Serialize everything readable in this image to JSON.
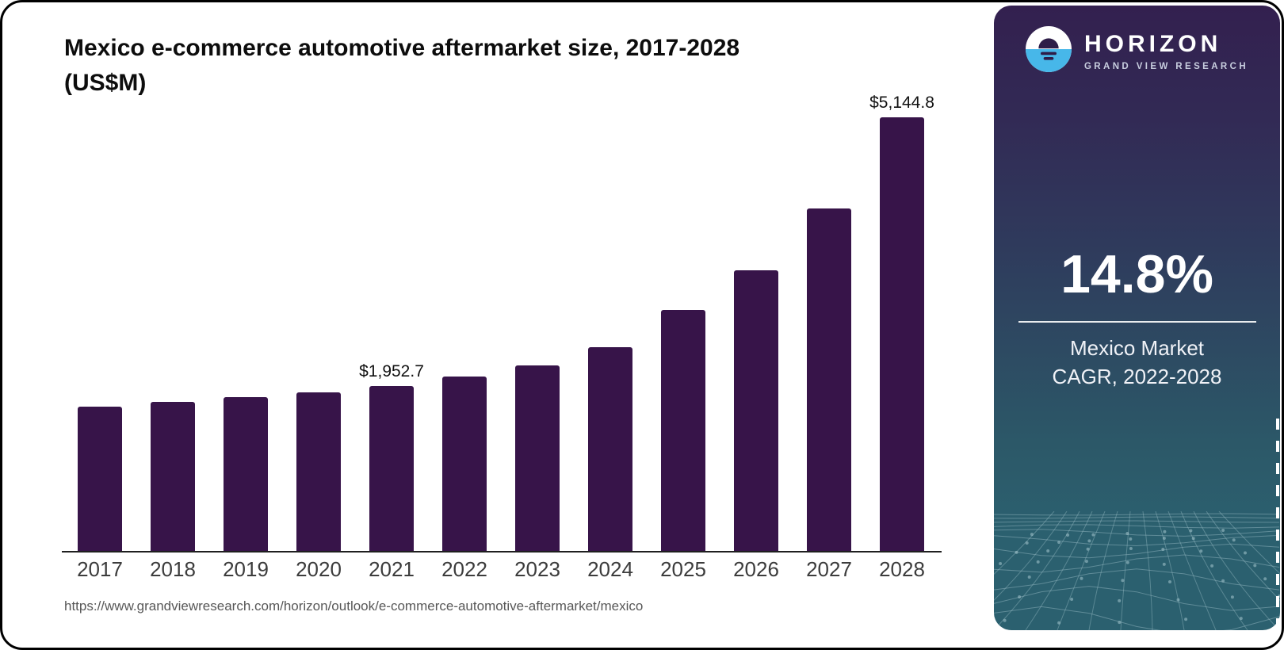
{
  "chart": {
    "title_line1": "Mexico e-commerce automotive aftermarket size, 2017-2028",
    "title_line2": "(US$M)",
    "source_url": "https://www.grandviewresearch.com/horizon/outlook/e-commerce-automotive-aftermarket/mexico"
  },
  "chart_data": {
    "type": "bar",
    "title": "Mexico e-commerce automotive aftermarket size, 2017-2028 (US$M)",
    "categories": [
      "2017",
      "2018",
      "2019",
      "2020",
      "2021",
      "2022",
      "2023",
      "2024",
      "2025",
      "2026",
      "2027",
      "2028"
    ],
    "values": [
      1715,
      1770,
      1820,
      1885,
      1952.7,
      2065,
      2205,
      2420,
      2860,
      3330,
      4060,
      5144.8
    ],
    "value_labels": {
      "2021": "$1,952.7",
      "2028": "$5,144.8"
    },
    "bar_color": "#371449",
    "axis_color": "#1f1f1f",
    "tick_color": "#3c3c3c",
    "ylim": [
      0,
      5300
    ],
    "grid": false,
    "legend": false
  },
  "sidebar": {
    "brand": "HORIZON",
    "brand_sub": "GRAND VIEW RESEARCH",
    "stat_value": "14.8%",
    "stat_caption_line1": "Mexico Market",
    "stat_caption_line2": "CAGR, 2022-2028",
    "gradient_top": "#33204F",
    "gradient_bottom": "#2B606F",
    "logo_blue": "#47B7E9",
    "logo_dark": "#2E1D48"
  }
}
